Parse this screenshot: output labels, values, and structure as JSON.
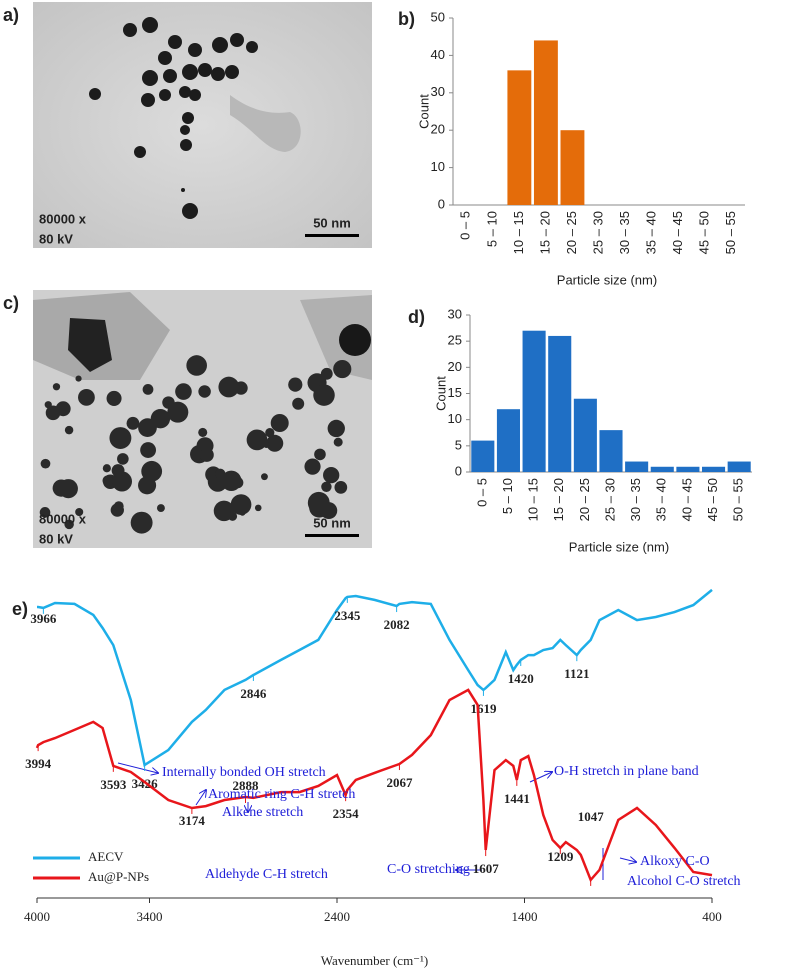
{
  "images": [
    {
      "label": "a)",
      "magnification": "80000 x",
      "voltage": "80 kV",
      "scale": "50 nm"
    },
    {
      "label": "c)",
      "magnification": "80000 x",
      "voltage": "80 kV",
      "scale": "50 nm"
    }
  ],
  "chart_data": [
    {
      "type": "bar",
      "panel": "b)",
      "x_label": "Particle size (nm)",
      "y_label": "Count",
      "color": "#e46c0a",
      "categories": [
        "0 – 5",
        "5 – 10",
        "10 – 15",
        "15 – 20",
        "20 – 25",
        "25 – 30",
        "30 – 35",
        "35 – 40",
        "40 – 45",
        "45 – 50",
        "50 – 55"
      ],
      "values": [
        0,
        0,
        36,
        44,
        20,
        0,
        0,
        0,
        0,
        0,
        0
      ],
      "ylim": [
        0,
        50
      ],
      "yticks": [
        0,
        10,
        20,
        30,
        40,
        50
      ]
    },
    {
      "type": "bar",
      "panel": "d)",
      "x_label": "Particle size (nm)",
      "y_label": "Count",
      "color": "#1f6fc5",
      "categories": [
        "0 – 5",
        "5 – 10",
        "10 – 15",
        "15 – 20",
        "20 – 25",
        "25 – 30",
        "30 – 35",
        "35 – 40",
        "40 – 45",
        "45 – 50",
        "50 – 55"
      ],
      "values": [
        6,
        12,
        27,
        26,
        14,
        8,
        2,
        1,
        1,
        1,
        2
      ],
      "ylim": [
        0,
        30
      ],
      "yticks": [
        0,
        5,
        10,
        15,
        20,
        25,
        30
      ]
    },
    {
      "type": "line",
      "panel": "e)",
      "x_label": "Wavenumber (cm⁻¹)",
      "xlim": [
        4000,
        400
      ],
      "xticks": [
        4000,
        3400,
        2400,
        1400,
        400
      ],
      "ylim": [
        0,
        100
      ],
      "x": [
        4000,
        3994,
        3966,
        3904,
        3800,
        3700,
        3650,
        3593,
        3500,
        3426,
        3300,
        3174,
        3100,
        3000,
        2888,
        2846,
        2700,
        2600,
        2500,
        2400,
        2354,
        2345,
        2300,
        2200,
        2082,
        2067,
        2000,
        1900,
        1800,
        1700,
        1650,
        1619,
        1607,
        1560,
        1500,
        1460,
        1441,
        1420,
        1380,
        1350,
        1300,
        1250,
        1209,
        1180,
        1121,
        1100,
        1047,
        1000,
        900,
        800,
        700,
        600,
        500,
        400
      ],
      "series": [
        {
          "name": "AECV",
          "color": "#1eaee8",
          "values": [
            92.8,
            92.8,
            92.5,
            94.1,
            93.8,
            90.2,
            85.9,
            80.3,
            62.3,
            41.0,
            45.9,
            55.1,
            59.0,
            65.6,
            68.9,
            70.5,
            75.4,
            78.7,
            82.0,
            91.8,
            95.7,
            96.1,
            96.4,
            95.1,
            93.1,
            93.8,
            94.4,
            93.8,
            82.0,
            72.1,
            67.2,
            65.6,
            66.2,
            68.9,
            78.0,
            72.1,
            73.8,
            75.4,
            77.0,
            77.0,
            78.7,
            79.3,
            82.0,
            80.3,
            77.0,
            78.7,
            82.0,
            88.5,
            91.8,
            88.5,
            89.5,
            91.1,
            93.4,
            98.4
          ],
          "peaks": [
            3966,
            3426,
            2846,
            2345,
            2082,
            1619,
            1420,
            1121
          ]
        },
        {
          "name": "Au@P-NPs",
          "color": "#e8161b",
          "values": [
            46.6,
            47.5,
            48.5,
            49.8,
            52.5,
            55.1,
            53.1,
            40.7,
            38.7,
            35.4,
            29.5,
            26.9,
            27.5,
            29.5,
            30.5,
            30.2,
            32.1,
            32.1,
            34.1,
            37.7,
            31.1,
            32.8,
            36.1,
            38.4,
            41.0,
            41.3,
            44.3,
            50.8,
            62.3,
            65.6,
            60.7,
            29.5,
            13.1,
            39.3,
            42.6,
            40.7,
            36.1,
            42.6,
            43.9,
            37.7,
            24.6,
            16.4,
            13.8,
            15.7,
            13.1,
            11.5,
            3.3,
            6.6,
            23.0,
            26.9,
            21.3,
            13.8,
            5.9,
            4.9
          ],
          "peaks": [
            3994,
            3593,
            3174,
            2888,
            2354,
            2067,
            1607,
            1441,
            1209,
            1047
          ]
        }
      ],
      "annotations": [
        "Internally bonded OH stretch",
        "Aromatic ring C-H stretch",
        "Alkene stretch",
        "Aldehyde C-H stretch",
        "O-H stretch in plane band",
        "C-O stretching",
        "Alkoxy C-O",
        "Alcohol C-O stretch"
      ]
    }
  ]
}
